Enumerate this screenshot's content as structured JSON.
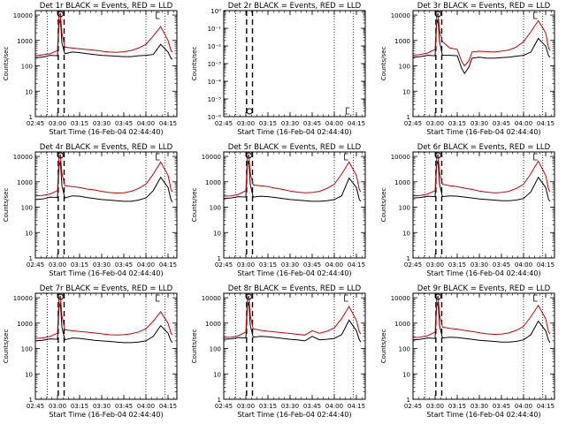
{
  "chart_data": [
    {
      "type": "line",
      "title": "Det 1r BLACK = Events, RED = LLD",
      "xlabel": "Start Time (16-Feb-04 02:44:40)",
      "ylabel": "Counts/sec",
      "x_tick_labels": [
        "02:45",
        "03:00",
        "03:15",
        "03:30",
        "03:45",
        "04:00",
        "04:15"
      ],
      "y_tick_labels": [
        "1",
        "10",
        "100",
        "1000",
        "10000"
      ],
      "y_scale": "log",
      "ylim": [
        1,
        15000
      ],
      "series": [
        {
          "color": "#000000",
          "x_min": [
            0,
            5,
            10,
            15,
            16,
            17,
            18,
            20,
            25,
            30,
            35,
            40,
            45,
            50,
            55,
            60,
            65,
            70,
            75,
            80,
            85,
            90,
            92,
            93
          ],
          "y": [
            210,
            220,
            260,
            250,
            4500,
            7000,
            800,
            300,
            350,
            330,
            300,
            280,
            260,
            250,
            240,
            230,
            230,
            250,
            260,
            280,
            700,
            350,
            200,
            180
          ]
        },
        {
          "color": "#cc0000",
          "x_min": [
            0,
            5,
            10,
            15,
            16,
            17,
            18,
            20,
            25,
            30,
            35,
            40,
            45,
            50,
            55,
            60,
            65,
            70,
            75,
            80,
            85,
            90,
            92,
            93
          ],
          "y": [
            250,
            270,
            300,
            400,
            9000,
            12000,
            2000,
            550,
            500,
            470,
            440,
            410,
            380,
            350,
            340,
            360,
            400,
            500,
            700,
            1500,
            3500,
            1000,
            400,
            350
          ]
        }
      ]
    },
    {
      "type": "line",
      "title": "Det 2r BLACK = Events, RED = LLD",
      "xlabel": "Start Time (16-Feb-04 02:44:40)",
      "ylabel": "Counts/sec",
      "x_tick_labels": [
        "02:45",
        "03:00",
        "03:15",
        "03:30",
        "03:45",
        "04:00",
        "04:15"
      ],
      "y_tick_labels": [
        "10⁻⁶",
        "10⁻⁵",
        "10⁻⁴",
        "10⁻³",
        "10⁻²",
        "10⁻¹",
        "10⁰"
      ],
      "y_scale": "log",
      "ylim": [
        1e-06,
        1
      ],
      "series": []
    },
    {
      "type": "line",
      "title": "Det 3r BLACK = Events, RED = LLD",
      "xlabel": "Start Time (16-Feb-04 02:44:40)",
      "ylabel": "Counts/sec",
      "x_tick_labels": [
        "02:45",
        "03:00",
        "03:15",
        "03:30",
        "03:45",
        "04:00",
        "04:15"
      ],
      "y_tick_labels": [
        "1",
        "10",
        "100",
        "1000",
        "10000"
      ],
      "y_scale": "log",
      "ylim": [
        1,
        15000
      ],
      "series": [
        {
          "color": "#000000",
          "x_min": [
            0,
            5,
            10,
            15,
            16,
            17,
            18,
            20,
            25,
            30,
            33,
            35,
            38,
            40,
            45,
            50,
            55,
            60,
            65,
            70,
            75,
            80,
            85,
            90,
            92,
            93
          ],
          "y": [
            220,
            230,
            260,
            250,
            4500,
            7000,
            900,
            260,
            260,
            250,
            80,
            50,
            90,
            200,
            220,
            200,
            200,
            210,
            220,
            240,
            260,
            350,
            1200,
            600,
            250,
            220
          ]
        },
        {
          "color": "#cc0000",
          "x_min": [
            0,
            5,
            10,
            15,
            16,
            17,
            18,
            20,
            25,
            30,
            33,
            35,
            38,
            40,
            45,
            50,
            55,
            60,
            65,
            70,
            75,
            80,
            85,
            90,
            92,
            93
          ],
          "y": [
            260,
            280,
            320,
            450,
            9000,
            12000,
            2500,
            900,
            500,
            450,
            150,
            100,
            160,
            350,
            380,
            360,
            350,
            380,
            420,
            550,
            900,
            2200,
            6000,
            2000,
            500,
            400
          ]
        }
      ]
    },
    {
      "type": "line",
      "title": "Det 4r BLACK = Events, RED = LLD",
      "xlabel": "Start Time (16-Feb-04 02:44:40)",
      "ylabel": "Counts/sec",
      "x_tick_labels": [
        "02:45",
        "03:00",
        "03:15",
        "03:30",
        "03:45",
        "04:00",
        "04:15"
      ],
      "y_tick_labels": [
        "1",
        "10",
        "100",
        "1000",
        "10000"
      ],
      "y_scale": "log",
      "ylim": [
        1,
        15000
      ],
      "series": [
        {
          "color": "#000000",
          "x_min": [
            0,
            5,
            10,
            15,
            16,
            17,
            18,
            20,
            25,
            30,
            35,
            40,
            45,
            50,
            55,
            60,
            65,
            70,
            75,
            80,
            85,
            90,
            92,
            93
          ],
          "y": [
            200,
            210,
            250,
            240,
            4000,
            6500,
            700,
            230,
            280,
            270,
            240,
            220,
            200,
            190,
            180,
            170,
            170,
            190,
            230,
            450,
            1500,
            600,
            200,
            160
          ]
        },
        {
          "color": "#cc0000",
          "x_min": [
            0,
            5,
            10,
            15,
            16,
            17,
            18,
            20,
            25,
            30,
            35,
            40,
            45,
            50,
            55,
            60,
            65,
            70,
            75,
            80,
            85,
            90,
            92,
            93
          ],
          "y": [
            280,
            290,
            330,
            450,
            9000,
            12000,
            2200,
            700,
            650,
            600,
            520,
            480,
            420,
            380,
            360,
            370,
            420,
            550,
            800,
            2000,
            6000,
            1800,
            500,
            400
          ]
        }
      ]
    },
    {
      "type": "line",
      "title": "Det 5r BLACK = Events, RED = LLD",
      "xlabel": "Start Time (16-Feb-04 02:44:40)",
      "ylabel": "Counts/sec",
      "x_tick_labels": [
        "02:45",
        "03:00",
        "03:15",
        "03:30",
        "03:45",
        "04:00",
        "04:15"
      ],
      "y_tick_labels": [
        "1",
        "10",
        "100",
        "1000",
        "10000"
      ],
      "y_scale": "log",
      "ylim": [
        1,
        15000
      ],
      "series": [
        {
          "color": "#000000",
          "x_min": [
            0,
            5,
            10,
            15,
            16,
            17,
            18,
            20,
            25,
            30,
            35,
            40,
            45,
            50,
            55,
            60,
            65,
            70,
            75,
            80,
            85,
            90,
            92,
            93
          ],
          "y": [
            220,
            230,
            260,
            250,
            4500,
            7000,
            800,
            250,
            270,
            260,
            240,
            220,
            200,
            190,
            180,
            170,
            170,
            180,
            200,
            280,
            1400,
            600,
            200,
            170
          ]
        },
        {
          "color": "#cc0000",
          "x_min": [
            0,
            5,
            10,
            15,
            16,
            17,
            18,
            20,
            25,
            30,
            35,
            40,
            45,
            50,
            55,
            60,
            65,
            70,
            75,
            80,
            85,
            90,
            92,
            93
          ],
          "y": [
            270,
            280,
            320,
            450,
            9000,
            12000,
            2200,
            750,
            700,
            650,
            560,
            500,
            430,
            390,
            370,
            380,
            420,
            550,
            800,
            2000,
            6000,
            1800,
            500,
            400
          ]
        }
      ]
    },
    {
      "type": "line",
      "title": "Det 6r BLACK = Events, RED = LLD",
      "xlabel": "Start Time (16-Feb-04 02:44:40)",
      "ylabel": "Counts/sec",
      "x_tick_labels": [
        "02:45",
        "03:00",
        "03:15",
        "03:30",
        "03:45",
        "04:00",
        "04:15"
      ],
      "y_tick_labels": [
        "1",
        "10",
        "100",
        "1000",
        "10000"
      ],
      "y_scale": "log",
      "ylim": [
        1,
        15000
      ],
      "series": [
        {
          "color": "#000000",
          "x_min": [
            0,
            5,
            10,
            15,
            16,
            17,
            18,
            20,
            25,
            30,
            35,
            40,
            45,
            50,
            55,
            60,
            65,
            70,
            75,
            80,
            85,
            90,
            92,
            93
          ],
          "y": [
            230,
            240,
            270,
            260,
            4500,
            7000,
            800,
            260,
            280,
            270,
            250,
            230,
            210,
            200,
            190,
            180,
            180,
            190,
            220,
            400,
            1500,
            600,
            200,
            170
          ]
        },
        {
          "color": "#cc0000",
          "x_min": [
            0,
            5,
            10,
            15,
            16,
            17,
            18,
            20,
            25,
            30,
            35,
            40,
            45,
            50,
            55,
            60,
            65,
            70,
            75,
            80,
            85,
            90,
            92,
            93
          ],
          "y": [
            280,
            290,
            330,
            450,
            9000,
            12000,
            2300,
            800,
            700,
            650,
            560,
            500,
            430,
            390,
            370,
            380,
            420,
            550,
            800,
            2100,
            6500,
            1800,
            500,
            400
          ]
        }
      ]
    },
    {
      "type": "line",
      "title": "Det 7r BLACK = Events, RED = LLD",
      "xlabel": "Start Time (16-Feb-04 02:44:40)",
      "ylabel": "Counts/sec",
      "x_tick_labels": [
        "02:45",
        "03:00",
        "03:15",
        "03:30",
        "03:45",
        "04:00",
        "04:15"
      ],
      "y_tick_labels": [
        "1",
        "10",
        "100",
        "1000",
        "10000"
      ],
      "y_scale": "log",
      "ylim": [
        1,
        15000
      ],
      "series": [
        {
          "color": "#000000",
          "x_min": [
            0,
            5,
            10,
            15,
            16,
            17,
            18,
            20,
            25,
            30,
            35,
            40,
            45,
            50,
            55,
            60,
            65,
            70,
            75,
            80,
            85,
            90,
            92,
            93
          ],
          "y": [
            200,
            210,
            240,
            230,
            4000,
            6500,
            700,
            220,
            260,
            250,
            230,
            210,
            200,
            190,
            180,
            170,
            170,
            180,
            200,
            300,
            800,
            400,
            200,
            170
          ]
        },
        {
          "color": "#cc0000",
          "x_min": [
            0,
            5,
            10,
            15,
            16,
            17,
            18,
            20,
            25,
            30,
            35,
            40,
            45,
            50,
            55,
            60,
            65,
            70,
            75,
            80,
            85,
            90,
            92,
            93
          ],
          "y": [
            250,
            260,
            300,
            400,
            9000,
            12000,
            2000,
            550,
            500,
            470,
            440,
            410,
            380,
            350,
            340,
            350,
            380,
            450,
            600,
            1200,
            2800,
            1000,
            400,
            350
          ]
        }
      ]
    },
    {
      "type": "line",
      "title": "Det 8r BLACK = Events, RED = LLD",
      "xlabel": "Start Time (16-Feb-04 02:44:40)",
      "ylabel": "Counts/sec",
      "x_tick_labels": [
        "02:45",
        "03:00",
        "03:15",
        "03:30",
        "03:45",
        "04:00",
        "04:15"
      ],
      "y_tick_labels": [
        "1",
        "10",
        "100",
        "1000",
        "10000"
      ],
      "y_scale": "log",
      "ylim": [
        1,
        15000
      ],
      "series": [
        {
          "color": "#000000",
          "x_min": [
            0,
            5,
            10,
            15,
            16,
            17,
            18,
            20,
            25,
            30,
            35,
            40,
            45,
            50,
            55,
            60,
            65,
            70,
            75,
            80,
            85,
            90,
            92,
            93
          ],
          "y": [
            230,
            240,
            270,
            260,
            4500,
            7000,
            800,
            280,
            300,
            290,
            270,
            250,
            230,
            220,
            200,
            300,
            220,
            230,
            250,
            350,
            1300,
            500,
            220,
            180
          ]
        },
        {
          "color": "#cc0000",
          "x_min": [
            0,
            5,
            10,
            15,
            16,
            17,
            18,
            20,
            25,
            30,
            35,
            40,
            45,
            50,
            55,
            60,
            65,
            70,
            75,
            80,
            85,
            90,
            92,
            93
          ],
          "y": [
            270,
            280,
            320,
            450,
            9000,
            12000,
            2000,
            600,
            520,
            480,
            450,
            420,
            390,
            360,
            340,
            500,
            400,
            480,
            650,
            1500,
            4500,
            1300,
            450,
            380
          ]
        }
      ]
    },
    {
      "type": "line",
      "title": "Det 9r BLACK = Events, RED = LLD",
      "xlabel": "Start Time (16-Feb-04 02:44:40)",
      "ylabel": "Counts/sec",
      "x_tick_labels": [
        "02:45",
        "03:00",
        "03:15",
        "03:30",
        "03:45",
        "04:00",
        "04:15"
      ],
      "y_tick_labels": [
        "1",
        "10",
        "100",
        "1000",
        "10000"
      ],
      "y_scale": "log",
      "ylim": [
        1,
        15000
      ],
      "series": [
        {
          "color": "#000000",
          "x_min": [
            0,
            5,
            10,
            15,
            16,
            17,
            18,
            20,
            25,
            30,
            35,
            40,
            45,
            50,
            55,
            60,
            65,
            70,
            75,
            80,
            85,
            90,
            92,
            93
          ],
          "y": [
            220,
            230,
            260,
            250,
            4500,
            7000,
            800,
            260,
            280,
            270,
            250,
            230,
            210,
            200,
            190,
            180,
            180,
            190,
            220,
            350,
            1200,
            500,
            210,
            170
          ]
        },
        {
          "color": "#cc0000",
          "x_min": [
            0,
            5,
            10,
            15,
            16,
            17,
            18,
            20,
            25,
            30,
            35,
            40,
            45,
            50,
            55,
            60,
            65,
            70,
            75,
            80,
            85,
            90,
            92,
            93
          ],
          "y": [
            270,
            280,
            320,
            450,
            9000,
            12000,
            2200,
            700,
            620,
            580,
            520,
            470,
            420,
            380,
            360,
            370,
            410,
            520,
            750,
            1800,
            5000,
            1500,
            450,
            380
          ]
        }
      ]
    }
  ]
}
